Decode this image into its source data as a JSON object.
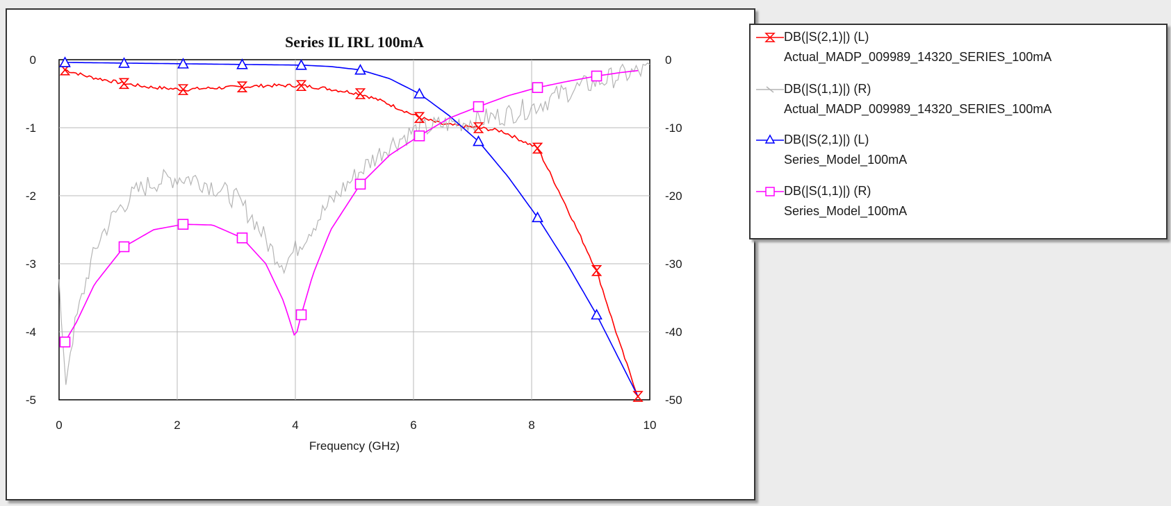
{
  "chart_data": {
    "type": "line",
    "title": "Series IL IRL 100mA",
    "xlabel": "Frequency (GHz)",
    "ylabel": "",
    "y2label": "",
    "xlim": [
      0,
      10
    ],
    "ylim": [
      -5,
      0
    ],
    "y2lim": [
      -50,
      0
    ],
    "grid": true,
    "legend_position": "right",
    "x_ticks": [
      "0",
      "2",
      "4",
      "6",
      "8",
      "10"
    ],
    "y_ticks": [
      "0",
      "-1",
      "-2",
      "-3",
      "-4",
      "-5"
    ],
    "y2_ticks": [
      "0",
      "-10",
      "-20",
      "-30",
      "-40",
      "-50"
    ],
    "series": [
      {
        "name": "DB(|S(2,1)|) (L)",
        "dataset": "Actual_MADP_009989_14320_SERIES_100mA",
        "axis": "left",
        "color": "#ff0000",
        "marker": "hourglass",
        "noisy": true,
        "x": [
          0.1,
          0.5,
          1.1,
          1.5,
          2.1,
          2.5,
          3.1,
          3.5,
          4.1,
          4.5,
          5.1,
          5.5,
          6.1,
          6.5,
          7.1,
          7.5,
          8.1,
          8.5,
          9.1,
          9.5,
          9.8
        ],
        "y": [
          -0.15,
          -0.25,
          -0.35,
          -0.4,
          -0.44,
          -0.42,
          -0.4,
          -0.38,
          -0.38,
          -0.42,
          -0.5,
          -0.62,
          -0.85,
          -0.95,
          -1.0,
          -1.05,
          -1.3,
          -2.0,
          -3.1,
          -4.2,
          -4.95
        ],
        "marker_x": [
          0.1,
          1.1,
          2.1,
          3.1,
          4.1,
          5.1,
          6.1,
          7.1,
          8.1,
          9.1,
          9.8
        ]
      },
      {
        "name": "DB(|S(1,1)|) (R)",
        "dataset": "Actual_MADP_009989_14320_SERIES_100mA",
        "axis": "right",
        "color": "#b4b4b4",
        "marker": "tick",
        "noisy": true,
        "x": [
          0.0,
          0.1,
          0.2,
          0.3,
          0.5,
          0.7,
          1.0,
          1.3,
          1.6,
          2.0,
          2.3,
          2.6,
          3.0,
          3.3,
          3.6,
          3.8,
          4.0,
          4.2,
          4.5,
          4.8,
          5.2,
          5.6,
          6.0,
          6.5,
          7.0,
          7.5,
          8.0,
          8.5,
          9.0,
          9.5,
          10.0
        ],
        "y": [
          -33,
          -48,
          -42,
          -38,
          -31,
          -26,
          -22,
          -19.5,
          -18,
          -17.3,
          -17.5,
          -18.5,
          -20.5,
          -23.5,
          -28,
          -30,
          -28,
          -25.5,
          -22,
          -19,
          -15.5,
          -12.5,
          -10.5,
          -9.5,
          -9,
          -8.2,
          -7,
          -5,
          -3.5,
          -2.3,
          -1.5
        ]
      },
      {
        "name": "DB(|S(2,1)|) (L)",
        "dataset": "Series_Model_100mA",
        "axis": "left",
        "color": "#0000ff",
        "marker": "triangle",
        "noisy": false,
        "x": [
          0.1,
          1.1,
          2.1,
          3.1,
          4.1,
          4.6,
          5.1,
          5.6,
          6.1,
          6.6,
          7.1,
          7.6,
          8.1,
          8.6,
          9.1,
          9.8
        ],
        "y": [
          -0.04,
          -0.05,
          -0.06,
          -0.07,
          -0.08,
          -0.1,
          -0.15,
          -0.28,
          -0.5,
          -0.82,
          -1.2,
          -1.72,
          -2.32,
          -3.0,
          -3.75,
          -4.95
        ],
        "marker_x": [
          0.1,
          1.1,
          2.1,
          3.1,
          4.1,
          5.1,
          6.1,
          7.1,
          8.1,
          9.1
        ]
      },
      {
        "name": "DB(|S(1,1)|) (R)",
        "dataset": "Series_Model_100mA",
        "axis": "right",
        "color": "#ff00ff",
        "marker": "square",
        "noisy": false,
        "x": [
          0.1,
          0.3,
          0.6,
          1.1,
          1.6,
          2.1,
          2.6,
          3.1,
          3.5,
          3.8,
          4.0,
          4.1,
          4.3,
          4.6,
          5.1,
          5.6,
          6.1,
          6.6,
          7.1,
          7.6,
          8.1,
          8.6,
          9.1,
          9.5,
          9.8
        ],
        "y": [
          -41.5,
          -38.5,
          -33,
          -27.5,
          -25,
          -24.2,
          -24.3,
          -26.2,
          -30,
          -35.5,
          -41,
          -37.5,
          -31.5,
          -25,
          -18.3,
          -14,
          -11.2,
          -8.6,
          -6.9,
          -5.3,
          -4.1,
          -3.2,
          -2.4,
          -1.9,
          -1.6
        ],
        "marker_x": [
          0.1,
          1.1,
          2.1,
          3.1,
          4.1,
          5.1,
          6.1,
          7.1,
          8.1,
          9.1
        ]
      }
    ]
  }
}
